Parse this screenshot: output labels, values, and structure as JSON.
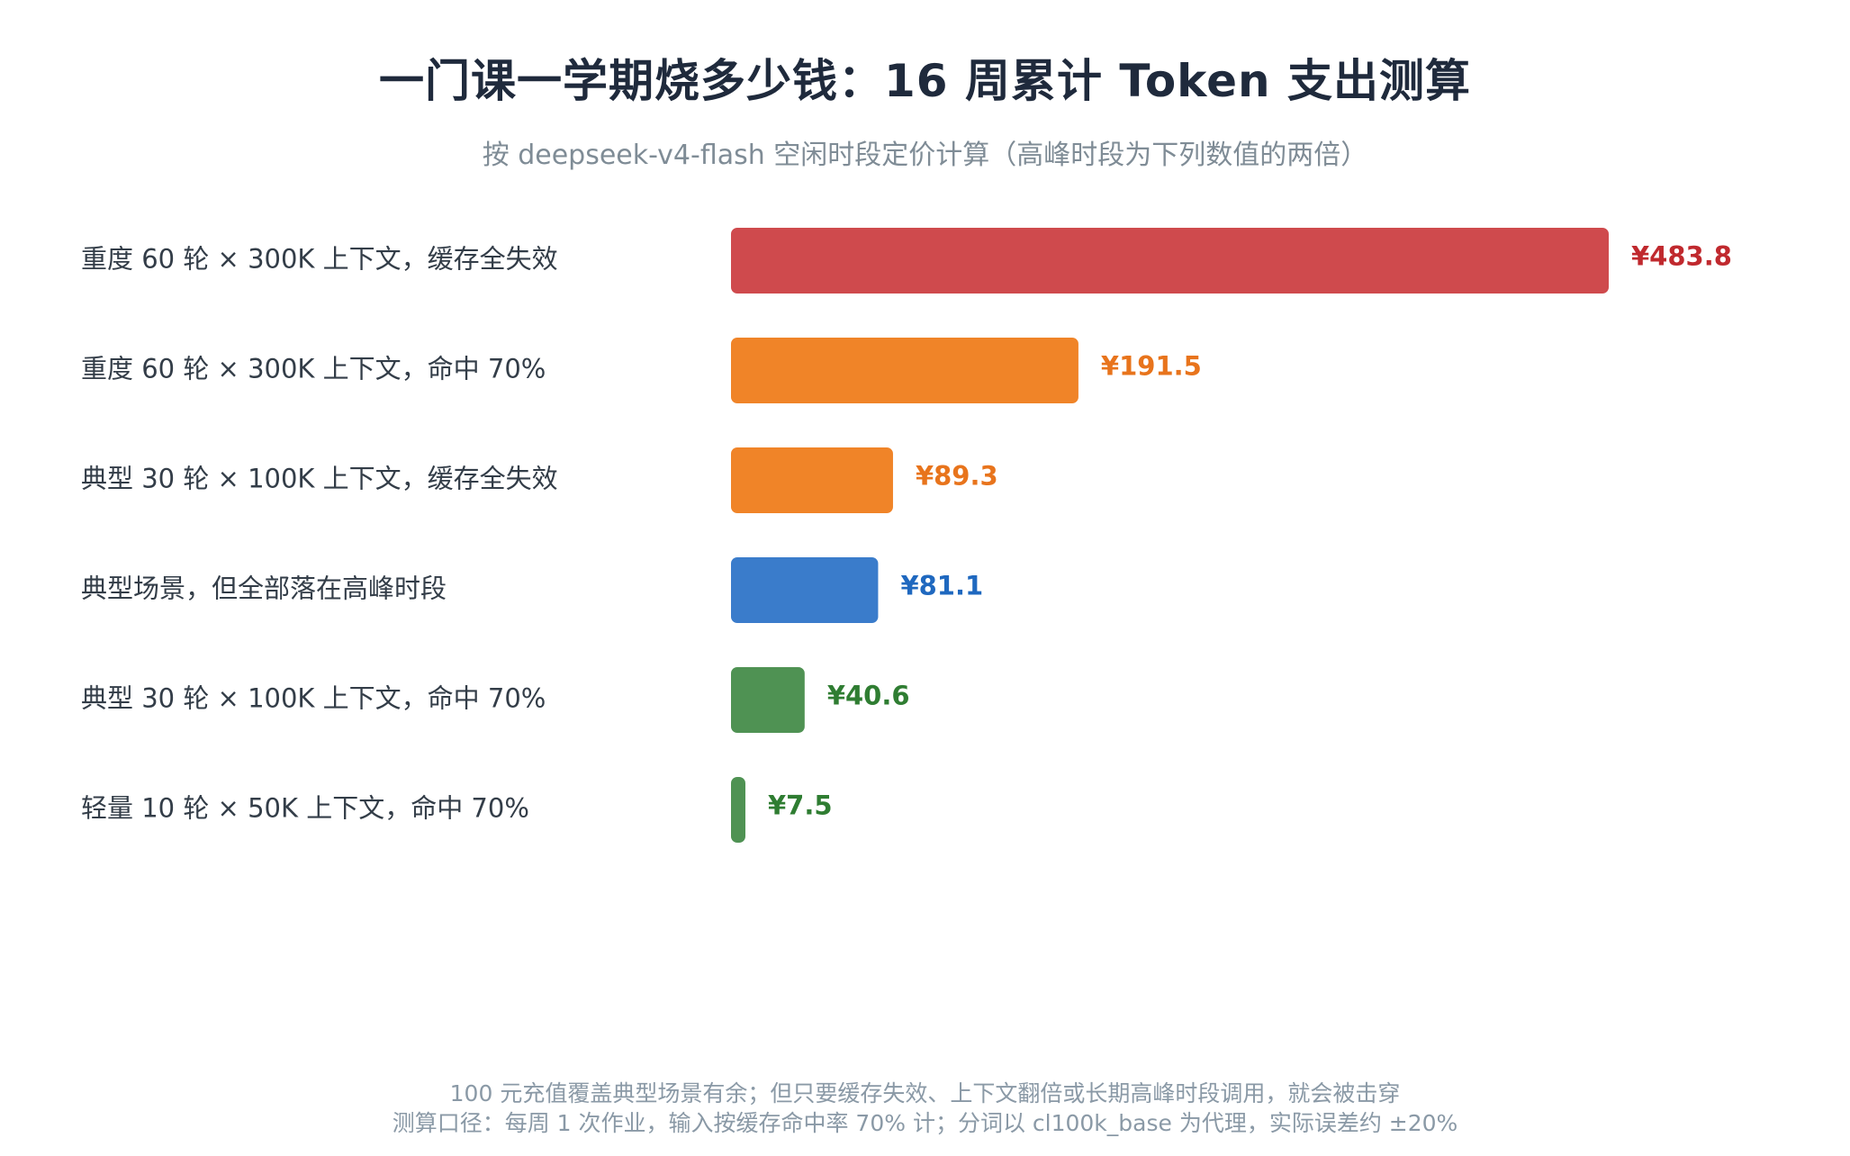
{
  "chart_data": {
    "type": "bar",
    "orientation": "horizontal",
    "title": "一门课一学期烧多少钱：16 周累计 Token 支出测算",
    "subtitle": "按 deepseek-v4-flash 空闲时段定价计算（高峰时段为下列数值的两倍）",
    "categories": [
      "重度 60 轮 × 300K 上下文，缓存全失效",
      "重度 60 轮 × 300K 上下文，命中 70%",
      "典型 30 轮 × 100K 上下文，缓存全失效",
      "典型场景，但全部落在高峰时段",
      "典型 30 轮 × 100K 上下文，命中 70%",
      "轻量 10 轮 × 50K 上下文，命中 70%"
    ],
    "values": [
      483.8,
      191.5,
      89.3,
      81.1,
      40.6,
      7.5
    ],
    "value_labels": [
      "¥483.8",
      "¥191.5",
      "¥89.3",
      "¥81.1",
      "¥40.6",
      "¥7.5"
    ],
    "bar_colors": [
      "#cf4a4d",
      "#f08428",
      "#f08428",
      "#3a7ccb",
      "#4f9253",
      "#4f9253"
    ],
    "label_colors": [
      "#c0292e",
      "#e8741c",
      "#e8741c",
      "#1f68bf",
      "#2f7d32",
      "#2f7d32"
    ],
    "xlim": [
      0,
      483.8
    ],
    "grid": false,
    "legend": "none"
  },
  "footer": {
    "line1": "100 元充值覆盖典型场景有余；但只要缓存失效、上下文翻倍或长期高峰时段调用，就会被击穿",
    "line2": "测算口径：每周 1 次作业，输入按缓存命中率 70% 计；分词以 cl100k_base 为代理，实际误差约 ±20%"
  }
}
